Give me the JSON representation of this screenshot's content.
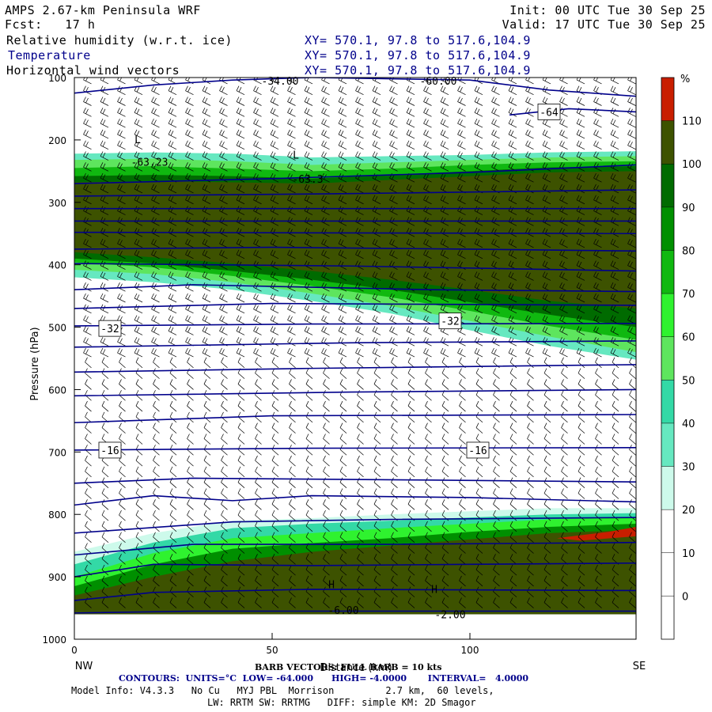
{
  "header": {
    "title": "AMPS 2.67-km Peninsula WRF",
    "fcst": "Fcst:   17 h",
    "init": "Init: 00 UTC Tue 30 Sep 25",
    "valid": "Valid: 17 UTC Tue 30 Sep 25",
    "fields": [
      {
        "name": "Relative humidity (w.r.t. ice)",
        "xy": "XY= 570.1, 97.8 to 517.6,104.9"
      },
      {
        "name": "Temperature",
        "xy": "XY= 570.1, 97.8 to 517.6,104.9"
      },
      {
        "name": "Horizontal wind vectors",
        "xy": "XY= 570.1, 97.8 to 517.6,104.9"
      }
    ]
  },
  "colors": {
    "contour": "#00008b",
    "fill_30_40": "#cdfaeb",
    "fill_40_50": "#66e8c0",
    "fill_50_60": "#33d9a6",
    "fill_60_70": "#5ee55e",
    "fill_70_80": "#2ff22f",
    "fill_80_90": "#10b810",
    "fill_90_100": "#008f00",
    "fill_100_110": "#006b00",
    "fill_110_plus": "#3d5200",
    "fill_top": "#c81e00"
  },
  "chart_data": {
    "type": "heatmap",
    "xlabel": "Distance (km)",
    "ylabel": "Pressure (hPa)",
    "xlim": [
      0,
      142
    ],
    "ylim": [
      1000,
      100
    ],
    "x_ticks": [
      0,
      50,
      100
    ],
    "y_ticks": [
      100,
      200,
      300,
      400,
      500,
      600,
      700,
      800,
      900,
      1000
    ],
    "x_end_labels": {
      "left": "NW",
      "right": "SE"
    },
    "colorbar": {
      "unit": "%",
      "levels": [
        0,
        10,
        20,
        30,
        40,
        50,
        60,
        70,
        80,
        90,
        100,
        110
      ],
      "tick_labels": [
        "110",
        "100",
        "90",
        "80",
        "70",
        "60",
        "50",
        "40",
        "30",
        "20",
        "10",
        "0"
      ]
    },
    "temperature_contour_labels": [
      {
        "text": "-64",
        "x": 120,
        "p": 155
      },
      {
        "text": "-63.23",
        "x": 19,
        "p": 235
      },
      {
        "text": "-63.3",
        "x": 59,
        "p": 262
      },
      {
        "text": "-32",
        "x": 9,
        "p": 502
      },
      {
        "text": "-32",
        "x": 95,
        "p": 490
      },
      {
        "text": "-16",
        "x": 9,
        "p": 697
      },
      {
        "text": "-16",
        "x": 102,
        "p": 697
      },
      {
        "text": "-34.00",
        "x": 52,
        "p": 105
      },
      {
        "text": "-60.00",
        "x": 92,
        "p": 105
      },
      {
        "text": "-6.00",
        "x": 68,
        "p": 953
      },
      {
        "text": "-2.00",
        "x": 95,
        "p": 960
      }
    ],
    "extrema_marks": [
      {
        "text": "L",
        "x": 16,
        "p": 205
      },
      {
        "text": "L",
        "x": 56,
        "p": 230
      },
      {
        "text": "H",
        "x": 65,
        "p": 918
      },
      {
        "text": "H",
        "x": 91,
        "p": 926
      }
    ]
  },
  "footer": {
    "barb_info": "BARB VECTORS: FULL BARB = 10 kts",
    "contours_info": "CONTOURS:  UNITS=°C  LOW= -64.000      HIGH= -4.0000       INTERVAL=   4.0000",
    "model_info": "Model Info: V4.3.3   No Cu   MYJ PBL  Morrison         2.7 km,  60 levels,",
    "model_info2": "LW: RRTM SW: RRTMG   DIFF: simple KM: 2D Smagor"
  }
}
